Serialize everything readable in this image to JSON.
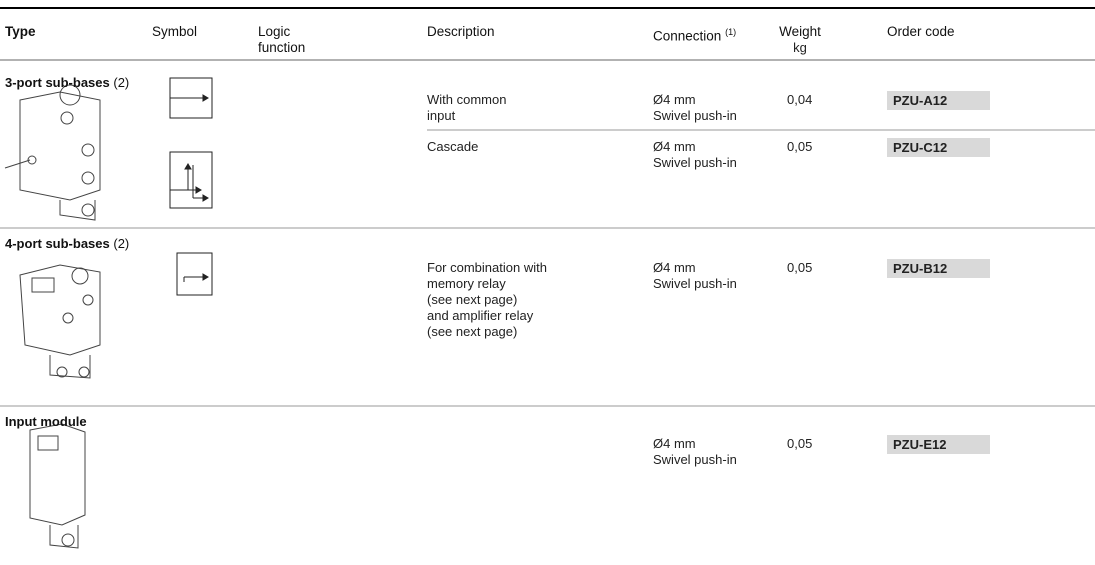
{
  "table": {
    "headers": {
      "type": "Type",
      "symbol": "Symbol",
      "logic_function": [
        "Logic",
        "function"
      ],
      "description": "Description",
      "connection": {
        "text": "Connection",
        "note": "(1)"
      },
      "weight": {
        "text": "Weight",
        "unit": "kg"
      },
      "order_code": "Order code"
    },
    "groups": [
      {
        "title": "3-port sub-bases",
        "note": "(2)",
        "rows": [
          {
            "description": [
              "With common",
              "input"
            ],
            "connection": [
              "Ø4 mm",
              "Swivel push-in"
            ],
            "weight": "0,04",
            "order_code": "PZU-A12"
          },
          {
            "description": [
              "Cascade"
            ],
            "connection": [
              "Ø4 mm",
              "Swivel push-in"
            ],
            "weight": "0,05",
            "order_code": "PZU-C12"
          }
        ]
      },
      {
        "title": "4-port sub-bases",
        "note": "(2)",
        "rows": [
          {
            "description": [
              "For combination with",
              "memory relay",
              "(see next page)",
              "and amplifier relay",
              "(see next page)"
            ],
            "connection": [
              "Ø4 mm",
              "Swivel push-in"
            ],
            "weight": "0,05",
            "order_code": "PZU-B12"
          }
        ]
      },
      {
        "title": "Input module",
        "rows": [
          {
            "connection": [
              "Ø4 mm",
              "Swivel push-in"
            ],
            "weight": "0,05",
            "order_code": "PZU-E12"
          }
        ]
      }
    ]
  }
}
